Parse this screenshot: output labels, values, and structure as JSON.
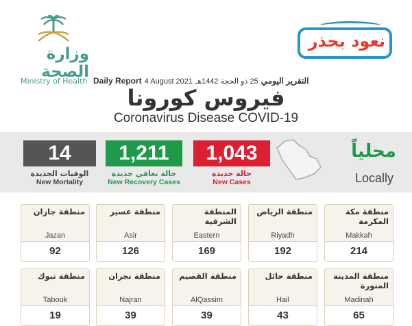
{
  "header": {
    "ministry_ar": "وزارة الصحة",
    "ministry_en": "Ministry of Health",
    "slogan_ar": "نعود بحذر",
    "report_ar": "التقرير اليومي",
    "hijri_date": "25 ذو الحجة 1442هـ",
    "gregorian_date": "4 August 2021",
    "report_en": "Daily Report",
    "title_ar": "فيروس كورونا",
    "title_en": "Coronavirus Disease COVID-19",
    "colors": {
      "teal": "#4a9b8f",
      "slogan_blue": "#2a95c7",
      "slogan_red": "#e53a2c"
    }
  },
  "summary": {
    "locally_ar": "محلياً",
    "locally_en": "Locally",
    "new_cases": {
      "value": "1,043",
      "label_ar": "حالة جديدة",
      "label_en": "New Cases",
      "color": "#dd1f32"
    },
    "recoveries": {
      "value": "1,211",
      "label_ar": "حالة تعافي جديدة",
      "label_en": "New Recovery Cases",
      "color": "#1f9a4a"
    },
    "mortality": {
      "value": "14",
      "label_ar": "الوفيات الجديدة",
      "label_en": "New Mortality",
      "color": "#555555"
    }
  },
  "regions": [
    {
      "ar": "منطقة مكة المكرمة",
      "en": "Makkah",
      "value": "214"
    },
    {
      "ar": "منطقة الرياض",
      "en": "Riyadh",
      "value": "192"
    },
    {
      "ar": "المنطقة الشرقية",
      "en": "Eastern",
      "value": "169"
    },
    {
      "ar": "منطقة عسير",
      "en": "Asir",
      "value": "126"
    },
    {
      "ar": "منطقة جازان",
      "en": "Jazan",
      "value": "92"
    },
    {
      "ar": "منطقة المدينة المنورة",
      "en": "Madinah",
      "value": "65"
    },
    {
      "ar": "منطقة حائل",
      "en": "Hail",
      "value": "43"
    },
    {
      "ar": "منطقة القصيم",
      "en": "AlQassim",
      "value": "39"
    },
    {
      "ar": "منطقة نجران",
      "en": "Najran",
      "value": "39"
    },
    {
      "ar": "منطقة تبوك",
      "en": "Tabouk",
      "value": "19"
    }
  ]
}
